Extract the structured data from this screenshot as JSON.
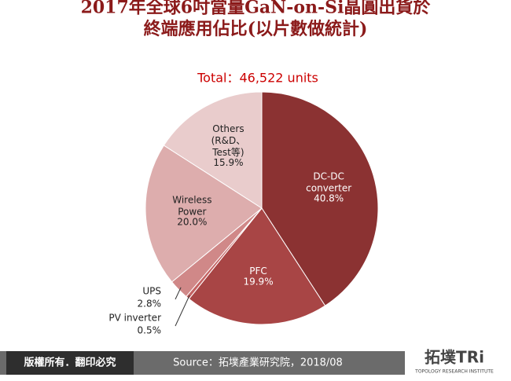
{
  "chart_data": {
    "type": "pie",
    "title": "2017年全球6吋當量GaN-on-Si晶圓出貨於\n終端應用佔比(以片數做統計)",
    "subtitle": "Total：46,522 units",
    "categories": [
      "DC-DC\nconverter",
      "PFC",
      "PV inverter",
      "UPS",
      "Wireless\nPower",
      "Others\n(R&D、\nTest等)"
    ],
    "values": [
      40.8,
      19.9,
      0.5,
      2.8,
      20.0,
      15.9
    ],
    "value_labels": [
      "40.8%",
      "19.9%",
      "0.5%",
      "2.8%",
      "20.0%",
      "15.9%"
    ],
    "colors": [
      "#8b3232",
      "#a84545",
      "#c46262",
      "#d08888",
      "#ddadad",
      "#e9cccc"
    ]
  },
  "footer": {
    "copyright": "版權所有．翻印必究",
    "source": "Source：拓墣產業研究院，2018/08",
    "logo": "拓墣TRi",
    "logo_sub": "TOPOLOGY RESEARCH INSTITUTE"
  }
}
